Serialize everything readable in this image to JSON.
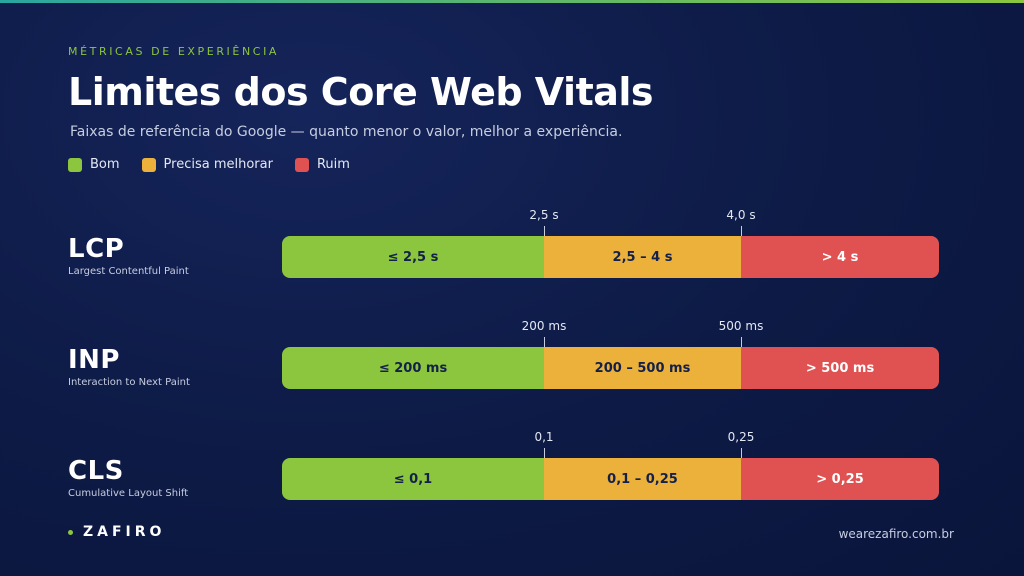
{
  "header": {
    "eyebrow": "MÉTRICAS DE EXPERIÊNCIA",
    "title": "Limites dos Core Web Vitals",
    "subtitle": "Faixas de referência do Google — quanto menor o valor, melhor a experiência."
  },
  "legend": [
    {
      "label": "Bom",
      "color": "#8cc63f"
    },
    {
      "label": "Precisa melhorar",
      "color": "#ebb13b"
    },
    {
      "label": "Ruim",
      "color": "#e05252"
    }
  ],
  "colors": {
    "good": "#8cc63f",
    "needs_improvement": "#ebb13b",
    "poor": "#e05252"
  },
  "metrics": [
    {
      "name": "LCP",
      "description": "Largest Contentful Paint",
      "thresholds": [
        "2,5 s",
        "4,0 s"
      ],
      "segments": [
        "≤ 2,5 s",
        "2,5 – 4 s",
        "> 4 s"
      ]
    },
    {
      "name": "INP",
      "description": "Interaction to Next Paint",
      "thresholds": [
        "200 ms",
        "500 ms"
      ],
      "segments": [
        "≤ 200 ms",
        "200 – 500 ms",
        "> 500 ms"
      ]
    },
    {
      "name": "CLS",
      "description": "Cumulative Layout Shift",
      "thresholds": [
        "0,1",
        "0,25"
      ],
      "segments": [
        "≤ 0,1",
        "0,1 – 0,25",
        "> 0,25"
      ]
    }
  ],
  "footer": {
    "brand": "ZAFIRO",
    "website": "wearezafiro.com.br"
  }
}
